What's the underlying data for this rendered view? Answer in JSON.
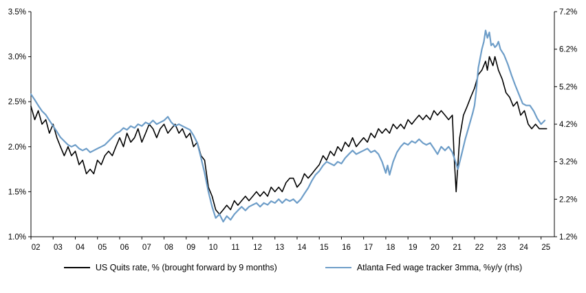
{
  "chart_data": {
    "type": "line",
    "title": "",
    "x_axis": {
      "labels": [
        "02",
        "03",
        "04",
        "05",
        "06",
        "07",
        "08",
        "09",
        "10",
        "11",
        "12",
        "13",
        "14",
        "15",
        "16",
        "17",
        "18",
        "19",
        "20",
        "21",
        "22",
        "23",
        "24",
        "25"
      ],
      "range": [
        2002,
        2025.6
      ]
    },
    "left_axis": {
      "ticks": [
        "3.5%",
        "3.0%",
        "2.5%",
        "2.0%",
        "1.5%",
        "1.0%"
      ],
      "range": [
        1.0,
        3.5
      ]
    },
    "right_axis": {
      "ticks": [
        "7.2%",
        "6.2%",
        "5.2%",
        "4.2%",
        "3.2%",
        "2.2%",
        "1.2%"
      ],
      "range": [
        1.2,
        7.2
      ]
    },
    "series": [
      {
        "id": "quits",
        "name": "US Quits rate, % (brought forward by 9 months)",
        "axis": "left",
        "color": "#000000",
        "points": [
          [
            2002.0,
            2.45
          ],
          [
            2002.17,
            2.3
          ],
          [
            2002.33,
            2.4
          ],
          [
            2002.5,
            2.25
          ],
          [
            2002.67,
            2.3
          ],
          [
            2002.83,
            2.15
          ],
          [
            2003.0,
            2.25
          ],
          [
            2003.17,
            2.1
          ],
          [
            2003.33,
            2.0
          ],
          [
            2003.5,
            1.9
          ],
          [
            2003.67,
            2.0
          ],
          [
            2003.83,
            1.9
          ],
          [
            2004.0,
            1.95
          ],
          [
            2004.17,
            1.8
          ],
          [
            2004.33,
            1.85
          ],
          [
            2004.5,
            1.7
          ],
          [
            2004.67,
            1.75
          ],
          [
            2004.83,
            1.7
          ],
          [
            2005.0,
            1.85
          ],
          [
            2005.17,
            1.8
          ],
          [
            2005.33,
            1.9
          ],
          [
            2005.5,
            1.95
          ],
          [
            2005.67,
            1.9
          ],
          [
            2005.83,
            2.0
          ],
          [
            2006.0,
            2.1
          ],
          [
            2006.17,
            2.0
          ],
          [
            2006.33,
            2.15
          ],
          [
            2006.5,
            2.05
          ],
          [
            2006.67,
            2.1
          ],
          [
            2006.83,
            2.2
          ],
          [
            2007.0,
            2.05
          ],
          [
            2007.17,
            2.15
          ],
          [
            2007.33,
            2.25
          ],
          [
            2007.5,
            2.2
          ],
          [
            2007.67,
            2.1
          ],
          [
            2007.83,
            2.2
          ],
          [
            2008.0,
            2.25
          ],
          [
            2008.17,
            2.15
          ],
          [
            2008.33,
            2.2
          ],
          [
            2008.5,
            2.25
          ],
          [
            2008.67,
            2.15
          ],
          [
            2008.83,
            2.2
          ],
          [
            2009.0,
            2.1
          ],
          [
            2009.17,
            2.15
          ],
          [
            2009.33,
            2.0
          ],
          [
            2009.5,
            2.05
          ],
          [
            2009.67,
            1.9
          ],
          [
            2009.83,
            1.85
          ],
          [
            2010.0,
            1.55
          ],
          [
            2010.17,
            1.45
          ],
          [
            2010.33,
            1.3
          ],
          [
            2010.5,
            1.25
          ],
          [
            2010.67,
            1.3
          ],
          [
            2010.83,
            1.35
          ],
          [
            2011.0,
            1.3
          ],
          [
            2011.17,
            1.4
          ],
          [
            2011.33,
            1.35
          ],
          [
            2011.5,
            1.4
          ],
          [
            2011.67,
            1.45
          ],
          [
            2011.83,
            1.4
          ],
          [
            2012.0,
            1.45
          ],
          [
            2012.17,
            1.5
          ],
          [
            2012.33,
            1.45
          ],
          [
            2012.5,
            1.5
          ],
          [
            2012.67,
            1.45
          ],
          [
            2012.83,
            1.55
          ],
          [
            2013.0,
            1.5
          ],
          [
            2013.17,
            1.55
          ],
          [
            2013.33,
            1.5
          ],
          [
            2013.5,
            1.6
          ],
          [
            2013.67,
            1.65
          ],
          [
            2013.83,
            1.65
          ],
          [
            2014.0,
            1.55
          ],
          [
            2014.17,
            1.6
          ],
          [
            2014.33,
            1.7
          ],
          [
            2014.5,
            1.65
          ],
          [
            2014.67,
            1.7
          ],
          [
            2014.83,
            1.75
          ],
          [
            2015.0,
            1.8
          ],
          [
            2015.17,
            1.9
          ],
          [
            2015.33,
            1.85
          ],
          [
            2015.5,
            1.95
          ],
          [
            2015.67,
            1.9
          ],
          [
            2015.83,
            2.0
          ],
          [
            2016.0,
            1.95
          ],
          [
            2016.17,
            2.05
          ],
          [
            2016.33,
            2.0
          ],
          [
            2016.5,
            2.1
          ],
          [
            2016.67,
            2.0
          ],
          [
            2016.83,
            2.05
          ],
          [
            2017.0,
            2.1
          ],
          [
            2017.17,
            2.05
          ],
          [
            2017.33,
            2.15
          ],
          [
            2017.5,
            2.1
          ],
          [
            2017.67,
            2.2
          ],
          [
            2017.83,
            2.15
          ],
          [
            2018.0,
            2.2
          ],
          [
            2018.17,
            2.15
          ],
          [
            2018.33,
            2.25
          ],
          [
            2018.5,
            2.2
          ],
          [
            2018.67,
            2.25
          ],
          [
            2018.83,
            2.2
          ],
          [
            2019.0,
            2.3
          ],
          [
            2019.17,
            2.25
          ],
          [
            2019.33,
            2.3
          ],
          [
            2019.5,
            2.35
          ],
          [
            2019.67,
            2.3
          ],
          [
            2019.83,
            2.35
          ],
          [
            2020.0,
            2.3
          ],
          [
            2020.17,
            2.4
          ],
          [
            2020.33,
            2.35
          ],
          [
            2020.5,
            2.4
          ],
          [
            2020.67,
            2.35
          ],
          [
            2020.83,
            2.3
          ],
          [
            2021.0,
            2.35
          ],
          [
            2021.08,
            1.9
          ],
          [
            2021.17,
            1.5
          ],
          [
            2021.33,
            2.1
          ],
          [
            2021.5,
            2.35
          ],
          [
            2021.67,
            2.45
          ],
          [
            2021.83,
            2.55
          ],
          [
            2022.0,
            2.65
          ],
          [
            2022.17,
            2.8
          ],
          [
            2022.33,
            2.85
          ],
          [
            2022.5,
            2.95
          ],
          [
            2022.58,
            2.85
          ],
          [
            2022.67,
            3.0
          ],
          [
            2022.83,
            2.9
          ],
          [
            2022.92,
            3.0
          ],
          [
            2023.08,
            2.85
          ],
          [
            2023.25,
            2.75
          ],
          [
            2023.42,
            2.6
          ],
          [
            2023.58,
            2.55
          ],
          [
            2023.75,
            2.45
          ],
          [
            2023.92,
            2.5
          ],
          [
            2024.08,
            2.35
          ],
          [
            2024.25,
            2.4
          ],
          [
            2024.42,
            2.25
          ],
          [
            2024.58,
            2.2
          ],
          [
            2024.75,
            2.25
          ],
          [
            2024.92,
            2.2
          ],
          [
            2025.08,
            2.2
          ],
          [
            2025.25,
            2.2
          ]
        ]
      },
      {
        "id": "wage",
        "name": "Atlanta Fed wage tracker 3mma, %y/y (rhs)",
        "axis": "right",
        "color": "#6D9DC8",
        "points": [
          [
            2002.0,
            5.0
          ],
          [
            2002.17,
            4.85
          ],
          [
            2002.33,
            4.7
          ],
          [
            2002.5,
            4.55
          ],
          [
            2002.67,
            4.45
          ],
          [
            2002.83,
            4.3
          ],
          [
            2003.0,
            4.15
          ],
          [
            2003.17,
            4.0
          ],
          [
            2003.33,
            3.85
          ],
          [
            2003.5,
            3.75
          ],
          [
            2003.67,
            3.65
          ],
          [
            2003.83,
            3.6
          ],
          [
            2004.0,
            3.65
          ],
          [
            2004.17,
            3.55
          ],
          [
            2004.33,
            3.5
          ],
          [
            2004.5,
            3.55
          ],
          [
            2004.67,
            3.45
          ],
          [
            2004.83,
            3.5
          ],
          [
            2005.0,
            3.55
          ],
          [
            2005.17,
            3.6
          ],
          [
            2005.33,
            3.65
          ],
          [
            2005.5,
            3.75
          ],
          [
            2005.67,
            3.85
          ],
          [
            2005.83,
            3.95
          ],
          [
            2006.0,
            4.0
          ],
          [
            2006.17,
            4.1
          ],
          [
            2006.33,
            4.05
          ],
          [
            2006.5,
            4.15
          ],
          [
            2006.67,
            4.1
          ],
          [
            2006.83,
            4.2
          ],
          [
            2007.0,
            4.15
          ],
          [
            2007.17,
            4.25
          ],
          [
            2007.33,
            4.2
          ],
          [
            2007.5,
            4.3
          ],
          [
            2007.67,
            4.2
          ],
          [
            2007.83,
            4.25
          ],
          [
            2008.0,
            4.3
          ],
          [
            2008.17,
            4.4
          ],
          [
            2008.33,
            4.25
          ],
          [
            2008.5,
            4.15
          ],
          [
            2008.67,
            4.2
          ],
          [
            2008.83,
            4.15
          ],
          [
            2009.0,
            4.1
          ],
          [
            2009.17,
            4.05
          ],
          [
            2009.33,
            3.9
          ],
          [
            2009.5,
            3.7
          ],
          [
            2009.67,
            3.3
          ],
          [
            2009.83,
            2.9
          ],
          [
            2010.0,
            2.4
          ],
          [
            2010.17,
            2.0
          ],
          [
            2010.33,
            1.7
          ],
          [
            2010.5,
            1.8
          ],
          [
            2010.67,
            1.6
          ],
          [
            2010.83,
            1.75
          ],
          [
            2011.0,
            1.65
          ],
          [
            2011.17,
            1.8
          ],
          [
            2011.33,
            1.9
          ],
          [
            2011.5,
            2.0
          ],
          [
            2011.67,
            1.9
          ],
          [
            2011.83,
            2.0
          ],
          [
            2012.0,
            2.05
          ],
          [
            2012.17,
            2.1
          ],
          [
            2012.33,
            2.0
          ],
          [
            2012.5,
            2.1
          ],
          [
            2012.67,
            2.05
          ],
          [
            2012.83,
            2.15
          ],
          [
            2013.0,
            2.1
          ],
          [
            2013.17,
            2.2
          ],
          [
            2013.33,
            2.1
          ],
          [
            2013.5,
            2.2
          ],
          [
            2013.67,
            2.15
          ],
          [
            2013.83,
            2.2
          ],
          [
            2014.0,
            2.1
          ],
          [
            2014.17,
            2.2
          ],
          [
            2014.33,
            2.35
          ],
          [
            2014.5,
            2.5
          ],
          [
            2014.67,
            2.7
          ],
          [
            2014.83,
            2.85
          ],
          [
            2015.0,
            2.95
          ],
          [
            2015.17,
            3.1
          ],
          [
            2015.33,
            3.2
          ],
          [
            2015.5,
            3.15
          ],
          [
            2015.67,
            3.1
          ],
          [
            2015.83,
            3.2
          ],
          [
            2016.0,
            3.15
          ],
          [
            2016.17,
            3.3
          ],
          [
            2016.33,
            3.4
          ],
          [
            2016.5,
            3.5
          ],
          [
            2016.67,
            3.4
          ],
          [
            2016.83,
            3.45
          ],
          [
            2017.0,
            3.5
          ],
          [
            2017.17,
            3.55
          ],
          [
            2017.33,
            3.45
          ],
          [
            2017.5,
            3.5
          ],
          [
            2017.67,
            3.4
          ],
          [
            2017.83,
            3.2
          ],
          [
            2018.0,
            2.9
          ],
          [
            2018.08,
            3.1
          ],
          [
            2018.17,
            2.85
          ],
          [
            2018.33,
            3.2
          ],
          [
            2018.5,
            3.45
          ],
          [
            2018.67,
            3.6
          ],
          [
            2018.83,
            3.7
          ],
          [
            2019.0,
            3.65
          ],
          [
            2019.17,
            3.75
          ],
          [
            2019.33,
            3.7
          ],
          [
            2019.5,
            3.8
          ],
          [
            2019.67,
            3.7
          ],
          [
            2019.83,
            3.65
          ],
          [
            2020.0,
            3.7
          ],
          [
            2020.17,
            3.55
          ],
          [
            2020.33,
            3.4
          ],
          [
            2020.5,
            3.6
          ],
          [
            2020.67,
            3.5
          ],
          [
            2020.83,
            3.6
          ],
          [
            2021.0,
            3.45
          ],
          [
            2021.17,
            3.15
          ],
          [
            2021.25,
            3.0
          ],
          [
            2021.42,
            3.4
          ],
          [
            2021.58,
            3.8
          ],
          [
            2021.75,
            4.15
          ],
          [
            2021.92,
            4.5
          ],
          [
            2022.0,
            4.7
          ],
          [
            2022.08,
            5.1
          ],
          [
            2022.17,
            5.7
          ],
          [
            2022.25,
            5.95
          ],
          [
            2022.33,
            6.2
          ],
          [
            2022.42,
            6.4
          ],
          [
            2022.5,
            6.7
          ],
          [
            2022.58,
            6.5
          ],
          [
            2022.67,
            6.65
          ],
          [
            2022.75,
            6.3
          ],
          [
            2022.83,
            6.35
          ],
          [
            2022.92,
            6.25
          ],
          [
            2023.0,
            6.3
          ],
          [
            2023.08,
            6.4
          ],
          [
            2023.17,
            6.2
          ],
          [
            2023.33,
            6.05
          ],
          [
            2023.5,
            5.8
          ],
          [
            2023.67,
            5.5
          ],
          [
            2023.83,
            5.25
          ],
          [
            2024.0,
            5.0
          ],
          [
            2024.17,
            4.75
          ],
          [
            2024.33,
            4.7
          ],
          [
            2024.5,
            4.7
          ],
          [
            2024.67,
            4.55
          ],
          [
            2024.83,
            4.35
          ],
          [
            2025.0,
            4.2
          ],
          [
            2025.17,
            4.3
          ]
        ]
      }
    ],
    "legend_position": "bottom",
    "grid": false
  }
}
